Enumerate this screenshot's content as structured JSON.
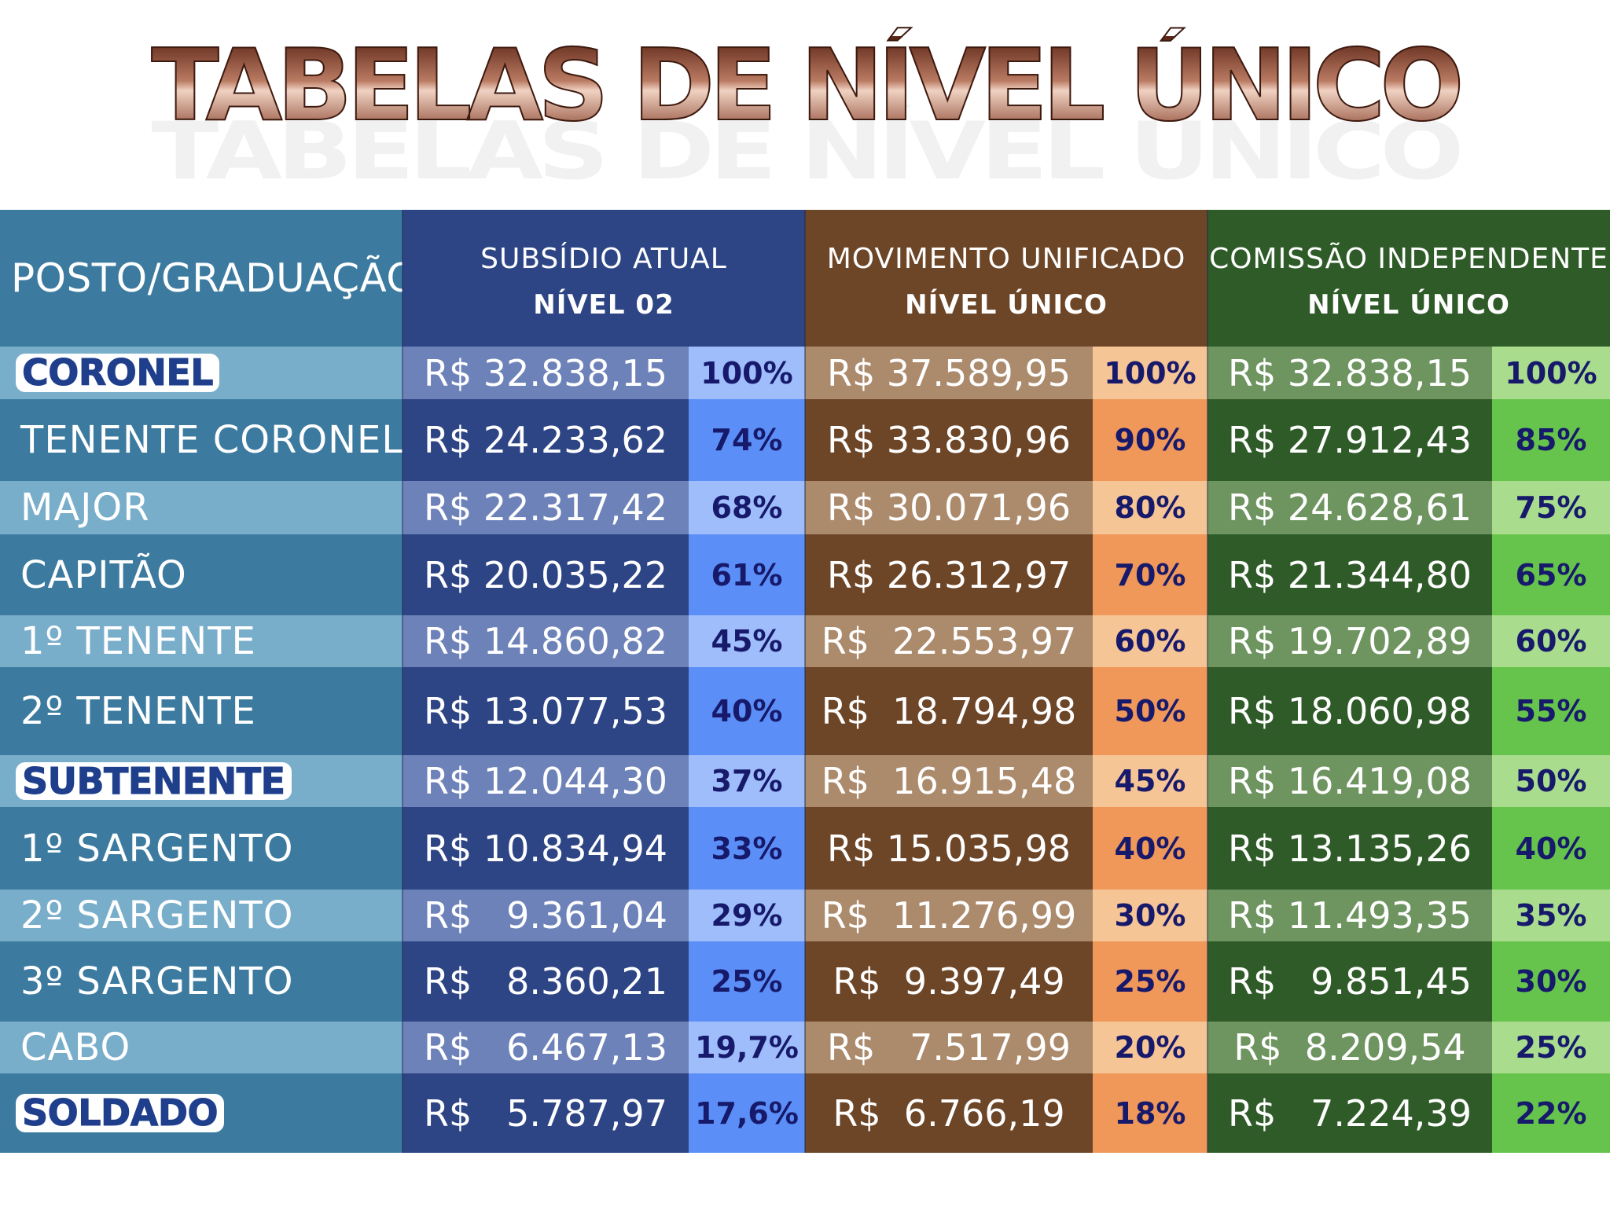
{
  "title": "TABELAS DE  NÍVEL ÚNICO",
  "header": {
    "posto": "POSTO/GRADUAÇÃO",
    "col1": {
      "line1": "SUBSÍDIO ATUAL",
      "line2": "NÍVEL 02"
    },
    "col2": {
      "line1": "MOVIMENTO UNIFICADO",
      "line2": "NÍVEL ÚNICO"
    },
    "col3": {
      "line1": "COMISSÃO INDEPENDENTE",
      "line2": "NÍVEL ÚNICO"
    }
  },
  "colors": {
    "blue": "#2d4485",
    "brown": "#6d4527",
    "green": "#2f5b28",
    "posto": "#3c7b9f"
  },
  "rows": [
    {
      "posto": "CORONEL",
      "highlight": true,
      "v1": "R$ 32.838,15",
      "p1": "100%",
      "v2": "R$ 37.589,95",
      "p2": "100%",
      "v3": "R$ 32.838,15",
      "p3": "100%"
    },
    {
      "posto": "TENENTE CORONEL",
      "highlight": false,
      "v1": "R$ 24.233,62",
      "p1": "74%",
      "v2": "R$ 33.830,96",
      "p2": "90%",
      "v3": "R$ 27.912,43",
      "p3": "85%"
    },
    {
      "posto": "MAJOR",
      "highlight": false,
      "v1": "R$ 22.317,42",
      "p1": "68%",
      "v2": "R$ 30.071,96",
      "p2": "80%",
      "v3": "R$ 24.628,61",
      "p3": "75%"
    },
    {
      "posto": "CAPITÃO",
      "highlight": false,
      "v1": "R$ 20.035,22",
      "p1": "61%",
      "v2": "R$ 26.312,97",
      "p2": "70%",
      "v3": "R$ 21.344,80",
      "p3": "65%"
    },
    {
      "posto": "1º TENENTE",
      "highlight": false,
      "v1": "R$ 14.860,82",
      "p1": "45%",
      "v2": "R$  22.553,97",
      "p2": "60%",
      "v3": "R$ 19.702,89",
      "p3": "60%"
    },
    {
      "posto": "2º TENENTE",
      "highlight": false,
      "v1": "R$ 13.077,53",
      "p1": "40%",
      "v2": "R$  18.794,98",
      "p2": "50%",
      "v3": "R$ 18.060,98",
      "p3": "55%"
    },
    {
      "posto": "SUBTENENTE",
      "highlight": true,
      "v1": "R$ 12.044,30",
      "p1": "37%",
      "v2": "R$  16.915,48",
      "p2": "45%",
      "v3": "R$ 16.419,08",
      "p3": "50%"
    },
    {
      "posto": "1º SARGENTO",
      "highlight": false,
      "v1": "R$ 10.834,94",
      "p1": "33%",
      "v2": "R$ 15.035,98",
      "p2": "40%",
      "v3": "R$ 13.135,26",
      "p3": "40%"
    },
    {
      "posto": "2º SARGENTO",
      "highlight": false,
      "v1": "R$   9.361,04",
      "p1": "29%",
      "v2": "R$  11.276,99",
      "p2": "30%",
      "v3": "R$ 11.493,35",
      "p3": "35%"
    },
    {
      "posto": "3º SARGENTO",
      "highlight": false,
      "v1": "R$   8.360,21",
      "p1": "25%",
      "v2": "R$  9.397,49",
      "p2": "25%",
      "v3": "R$   9.851,45",
      "p3": "30%"
    },
    {
      "posto": "CABO",
      "highlight": false,
      "v1": "R$   6.467,13",
      "p1": "19,7%",
      "v2": "R$   7.517,99",
      "p2": "20%",
      "v3": "R$  8.209,54",
      "p3": "25%"
    },
    {
      "posto": "SOLDADO",
      "highlight": true,
      "v1": "R$   5.787,97",
      "p1": "17,6%",
      "v2": "R$  6.766,19",
      "p2": "18%",
      "v3": "R$   7.224,39",
      "p3": "22%"
    }
  ]
}
